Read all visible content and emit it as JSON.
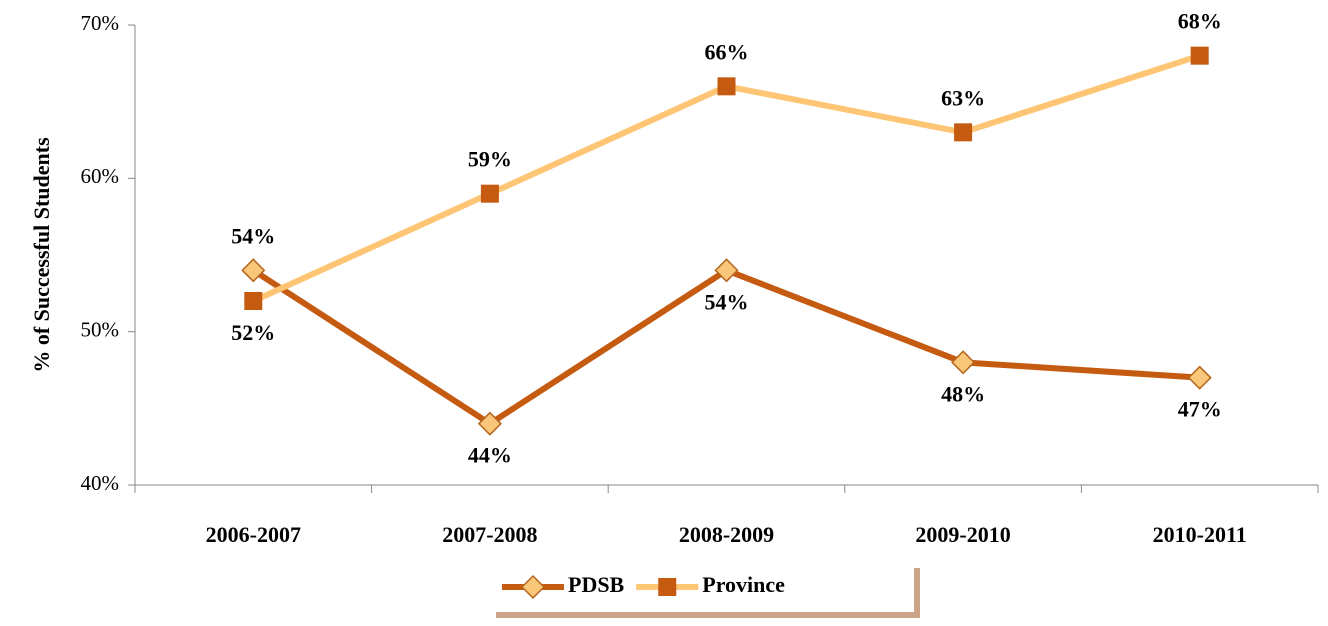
{
  "chart_data": {
    "type": "line",
    "y_axis_label": "% of Successful Students",
    "categories": [
      "2006-2007",
      "2007-2008",
      "2008-2009",
      "2009-2010",
      "2010-2011"
    ],
    "series": [
      {
        "name": "PDSB",
        "color": "#c55a11",
        "marker": "diamond",
        "marker_color": "#fac77a",
        "values": [
          54,
          44,
          54,
          48,
          47
        ],
        "value_labels": [
          "54%",
          "44%",
          "54%",
          "48%",
          "47%"
        ]
      },
      {
        "name": "Province",
        "color": "#fec674",
        "marker": "square",
        "marker_color": "#c55a11",
        "values": [
          52,
          59,
          66,
          63,
          68
        ],
        "value_labels": [
          "52%",
          "59%",
          "66%",
          "63%",
          "68%"
        ]
      }
    ],
    "ylim": [
      40,
      70
    ],
    "yticks": [
      {
        "value": 40,
        "label": "40%"
      },
      {
        "value": 50,
        "label": "50%"
      },
      {
        "value": 60,
        "label": "60%"
      },
      {
        "value": 70,
        "label": "70%"
      }
    ],
    "grid": false,
    "legend": "bottom"
  }
}
